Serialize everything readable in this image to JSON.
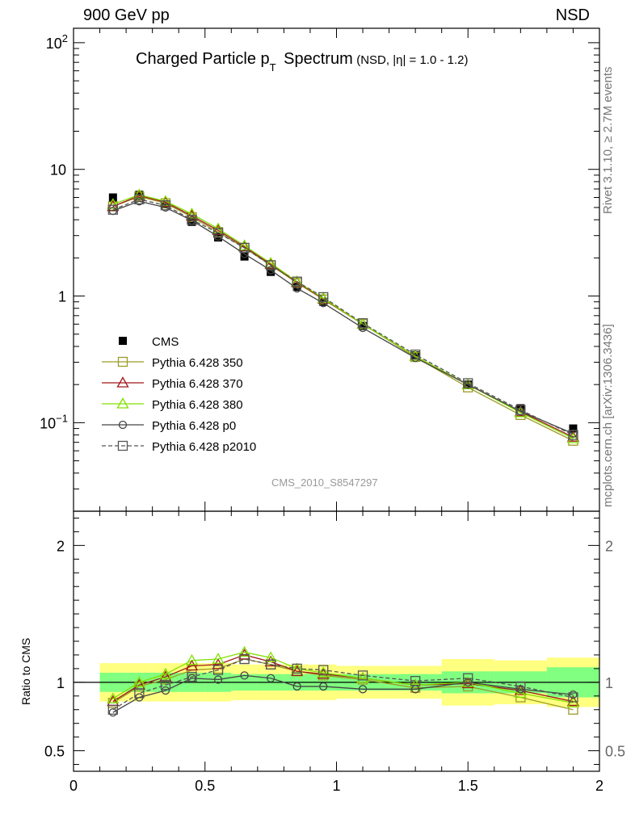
{
  "header": {
    "left": "900 GeV pp",
    "right": "NSD",
    "side_top": "Rivet 3.1.10, ≥ 2.7M events",
    "side_bottom": "mcplots.cern.ch [arXiv:1306.3436]"
  },
  "plot_title": {
    "main_pre": "Charged Particle p",
    "main_sub": "T",
    "main_post": " Spectrum",
    "qualifier": "(NSD, |η| = 1.0 - 1.2)"
  },
  "watermark": "CMS_2010_S8547297",
  "ratio_ylabel": "Ratio to CMS",
  "chart_data": [
    {
      "type": "line",
      "yscale": "log",
      "xlim": [
        0,
        2
      ],
      "ylim": [
        0.02,
        130
      ],
      "y_tick_labels": [
        {
          "v": 100,
          "base": "10",
          "exp": "2"
        },
        {
          "v": 10,
          "base": "10",
          "exp": ""
        },
        {
          "v": 1,
          "base": "1",
          "exp": ""
        },
        {
          "v": 0.1,
          "base": "10",
          "exp": "−1"
        }
      ],
      "x": [
        0.15,
        0.25,
        0.35,
        0.45,
        0.55,
        0.65,
        0.75,
        0.85,
        0.95,
        1.1,
        1.3,
        1.5,
        1.7,
        1.9
      ],
      "series": [
        {
          "name": "CMS",
          "color": "#000000",
          "marker": "filled-square",
          "values": [
            6.0,
            6.3,
            5.3,
            3.85,
            2.9,
            2.05,
            1.55,
            1.18,
            0.9,
            0.58,
            0.34,
            0.2,
            0.13,
            0.09
          ]
        },
        {
          "name": "Pythia 6.428 350",
          "color": "#9c9c26",
          "marker": "open-square",
          "dash": false,
          "values": [
            5.1,
            6.1,
            5.4,
            4.2,
            3.2,
            2.4,
            1.75,
            1.27,
            0.94,
            0.6,
            0.33,
            0.19,
            0.115,
            0.072
          ]
        },
        {
          "name": "Pythia 6.428 370",
          "color": "#a01818",
          "marker": "open-triangle",
          "dash": false,
          "values": [
            5.1,
            6.2,
            5.5,
            4.3,
            3.3,
            2.45,
            1.78,
            1.28,
            0.95,
            0.6,
            0.335,
            0.2,
            0.122,
            0.077
          ]
        },
        {
          "name": "Pythia 6.428 380",
          "color": "#80e000",
          "marker": "open-triangle",
          "dash": false,
          "values": [
            5.3,
            6.3,
            5.6,
            4.45,
            3.4,
            2.5,
            1.82,
            1.3,
            0.96,
            0.6,
            0.335,
            0.2,
            0.12,
            0.075
          ]
        },
        {
          "name": "Pythia 6.428 p0",
          "color": "#444444",
          "marker": "open-circle",
          "dash": false,
          "values": [
            4.7,
            5.6,
            5.0,
            3.95,
            2.95,
            2.15,
            1.6,
            1.15,
            0.88,
            0.56,
            0.325,
            0.2,
            0.123,
            0.082
          ]
        },
        {
          "name": "Pythia 6.428 p2010",
          "color": "#555555",
          "marker": "open-square",
          "dash": true,
          "values": [
            4.8,
            5.8,
            5.2,
            4.0,
            3.15,
            2.4,
            1.75,
            1.3,
            0.98,
            0.61,
            0.345,
            0.205,
            0.126,
            0.08
          ]
        }
      ]
    },
    {
      "type": "line",
      "xlim": [
        0,
        2
      ],
      "ylim": [
        0.35,
        2.25
      ],
      "x_tick_labels": [
        "0",
        "0.5",
        "1",
        "1.5",
        "2"
      ],
      "y_tick_labels": [
        "0.5",
        "1",
        "2"
      ],
      "x": [
        0.15,
        0.25,
        0.35,
        0.45,
        0.55,
        0.65,
        0.75,
        0.85,
        0.95,
        1.1,
        1.3,
        1.5,
        1.7,
        1.9
      ],
      "bands": {
        "inner_color": "#80ff80",
        "outer_color": "#ffff80",
        "bins": [
          {
            "x0": 0.1,
            "x1": 0.2,
            "inner": [
              0.93,
              1.07
            ],
            "outer": [
              0.86,
              1.14
            ]
          },
          {
            "x0": 0.2,
            "x1": 0.3,
            "inner": [
              0.93,
              1.07
            ],
            "outer": [
              0.86,
              1.14
            ]
          },
          {
            "x0": 0.3,
            "x1": 0.4,
            "inner": [
              0.93,
              1.07
            ],
            "outer": [
              0.86,
              1.14
            ]
          },
          {
            "x0": 0.4,
            "x1": 0.5,
            "inner": [
              0.93,
              1.07
            ],
            "outer": [
              0.86,
              1.14
            ]
          },
          {
            "x0": 0.5,
            "x1": 0.6,
            "inner": [
              0.93,
              1.07
            ],
            "outer": [
              0.86,
              1.14
            ]
          },
          {
            "x0": 0.6,
            "x1": 0.7,
            "inner": [
              0.94,
              1.06
            ],
            "outer": [
              0.87,
              1.13
            ]
          },
          {
            "x0": 0.7,
            "x1": 0.8,
            "inner": [
              0.94,
              1.06
            ],
            "outer": [
              0.87,
              1.13
            ]
          },
          {
            "x0": 0.8,
            "x1": 0.9,
            "inner": [
              0.94,
              1.06
            ],
            "outer": [
              0.87,
              1.13
            ]
          },
          {
            "x0": 0.9,
            "x1": 1.0,
            "inner": [
              0.94,
              1.06
            ],
            "outer": [
              0.87,
              1.13
            ]
          },
          {
            "x0": 1.0,
            "x1": 1.2,
            "inner": [
              0.94,
              1.06
            ],
            "outer": [
              0.88,
              1.12
            ]
          },
          {
            "x0": 1.2,
            "x1": 1.4,
            "inner": [
              0.94,
              1.06
            ],
            "outer": [
              0.88,
              1.12
            ]
          },
          {
            "x0": 1.4,
            "x1": 1.6,
            "inner": [
              0.92,
              1.08
            ],
            "outer": [
              0.83,
              1.17
            ]
          },
          {
            "x0": 1.6,
            "x1": 1.8,
            "inner": [
              0.92,
              1.08
            ],
            "outer": [
              0.84,
              1.16
            ]
          },
          {
            "x0": 1.8,
            "x1": 2.0,
            "inner": [
              0.89,
              1.11
            ],
            "outer": [
              0.82,
              1.18
            ]
          }
        ]
      },
      "series": [
        {
          "name": "Pythia 6.428 350",
          "color": "#9c9c26",
          "marker": "open-square",
          "dash": false,
          "values": [
            0.85,
            0.97,
            1.02,
            1.09,
            1.1,
            1.17,
            1.13,
            1.08,
            1.05,
            1.02,
            0.96,
            0.97,
            0.89,
            0.8
          ]
        },
        {
          "name": "Pythia 6.428 370",
          "color": "#a01818",
          "marker": "open-triangle",
          "dash": false,
          "values": [
            0.86,
            0.98,
            1.04,
            1.12,
            1.13,
            1.2,
            1.15,
            1.08,
            1.06,
            1.03,
            0.98,
            0.99,
            0.94,
            0.86
          ]
        },
        {
          "name": "Pythia 6.428 380",
          "color": "#80e000",
          "marker": "open-triangle",
          "dash": false,
          "values": [
            0.88,
            1.0,
            1.06,
            1.16,
            1.17,
            1.22,
            1.18,
            1.1,
            1.07,
            1.03,
            0.98,
            1.0,
            0.92,
            0.85
          ]
        },
        {
          "name": "Pythia 6.428 p0",
          "color": "#444444",
          "marker": "open-circle",
          "dash": false,
          "values": [
            0.78,
            0.89,
            0.94,
            1.03,
            1.02,
            1.05,
            1.03,
            0.97,
            0.97,
            0.95,
            0.95,
            1.0,
            0.95,
            0.91
          ]
        },
        {
          "name": "Pythia 6.428 p2010",
          "color": "#555555",
          "marker": "open-square",
          "dash": true,
          "values": [
            0.8,
            0.92,
            0.98,
            1.04,
            1.09,
            1.17,
            1.13,
            1.1,
            1.09,
            1.05,
            1.01,
            1.03,
            0.97,
            0.89
          ]
        }
      ]
    }
  ]
}
